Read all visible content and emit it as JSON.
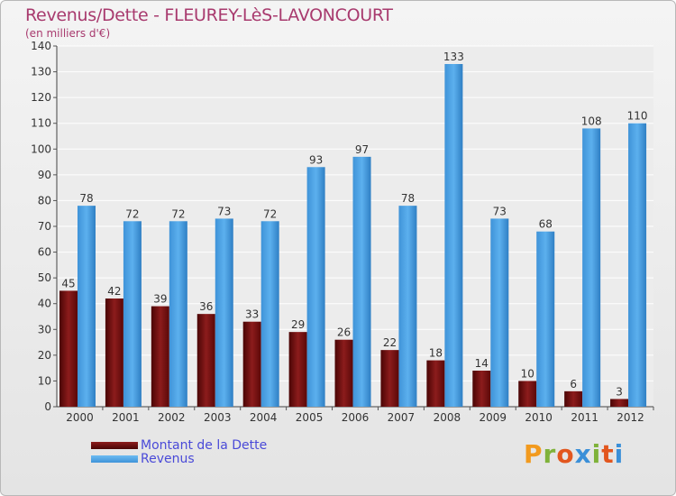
{
  "header": {
    "title": "Revenus/Dette - FLEUREY-LèS-LAVONCOURT",
    "subtitle": "(en milliers d'€)"
  },
  "brand": {
    "text": "Proxiti",
    "colors": [
      "#f29a1e",
      "#7fb23a",
      "#e2561e",
      "#3a8fd8",
      "#7fb23a",
      "#e2561e",
      "#3a8fd8"
    ]
  },
  "legend": {
    "placement": "bottom-left",
    "items": [
      {
        "label": "Montant de la Dette",
        "color": "#6e0a0a"
      },
      {
        "label": "Revenus",
        "color": "#4aa3e8"
      }
    ]
  },
  "chart_data": {
    "type": "bar",
    "title": "Revenus/Dette - FLEUREY-LèS-LAVONCOURT",
    "ylabel": "(en milliers d'€)",
    "xlabel": "",
    "categories": [
      "2000",
      "2001",
      "2002",
      "2003",
      "2004",
      "2005",
      "2006",
      "2007",
      "2008",
      "2009",
      "2010",
      "2011",
      "2012"
    ],
    "series": [
      {
        "name": "Montant de la Dette",
        "color": "#7a1414",
        "values": [
          45,
          42,
          39,
          36,
          33,
          29,
          26,
          22,
          18,
          14,
          10,
          6,
          3
        ]
      },
      {
        "name": "Revenus",
        "color": "#4aa3e8",
        "values": [
          78,
          72,
          72,
          73,
          72,
          93,
          97,
          78,
          133,
          73,
          68,
          108,
          110
        ]
      }
    ],
    "ylim": [
      0,
      140
    ],
    "yticks": [
      0,
      10,
      20,
      30,
      40,
      50,
      60,
      70,
      80,
      90,
      100,
      110,
      120,
      130,
      140
    ],
    "grid": true
  }
}
